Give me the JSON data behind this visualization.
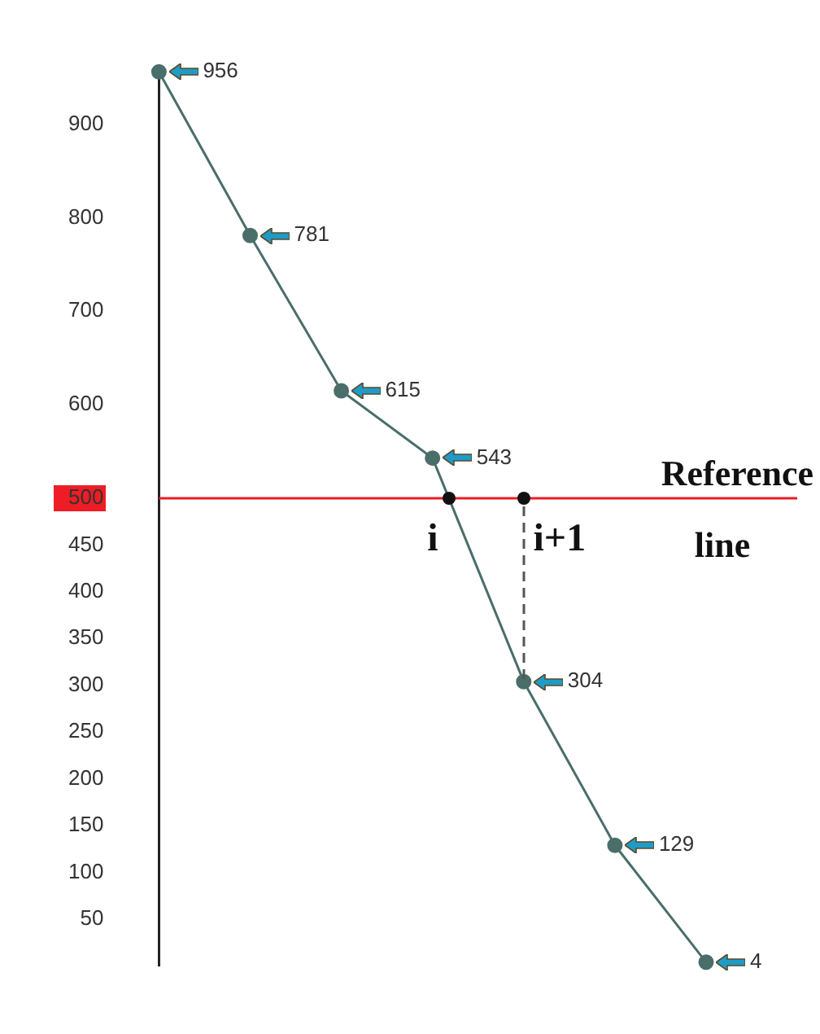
{
  "chart_data": {
    "type": "line",
    "categories": [
      null,
      null,
      null,
      null,
      null,
      null,
      null
    ],
    "ylim": [
      0,
      960
    ],
    "yticks": [
      50,
      100,
      150,
      200,
      250,
      300,
      350,
      400,
      450,
      500,
      600,
      700,
      800,
      900
    ],
    "grid": false,
    "legend": false,
    "marker": "circle",
    "series": [
      {
        "color": "#4a6e6a",
        "values": [
          956,
          781,
          615,
          543,
          304,
          129,
          4
        ],
        "value_labels": [
          "956",
          "781",
          "615",
          "543",
          "304",
          "129",
          "4"
        ]
      }
    ],
    "ref_lines": [
      {
        "axis": "y",
        "value": 500,
        "label": "Reference line",
        "color": "#ee1c25"
      }
    ],
    "annotations": [
      "i",
      "i+1"
    ]
  }
}
